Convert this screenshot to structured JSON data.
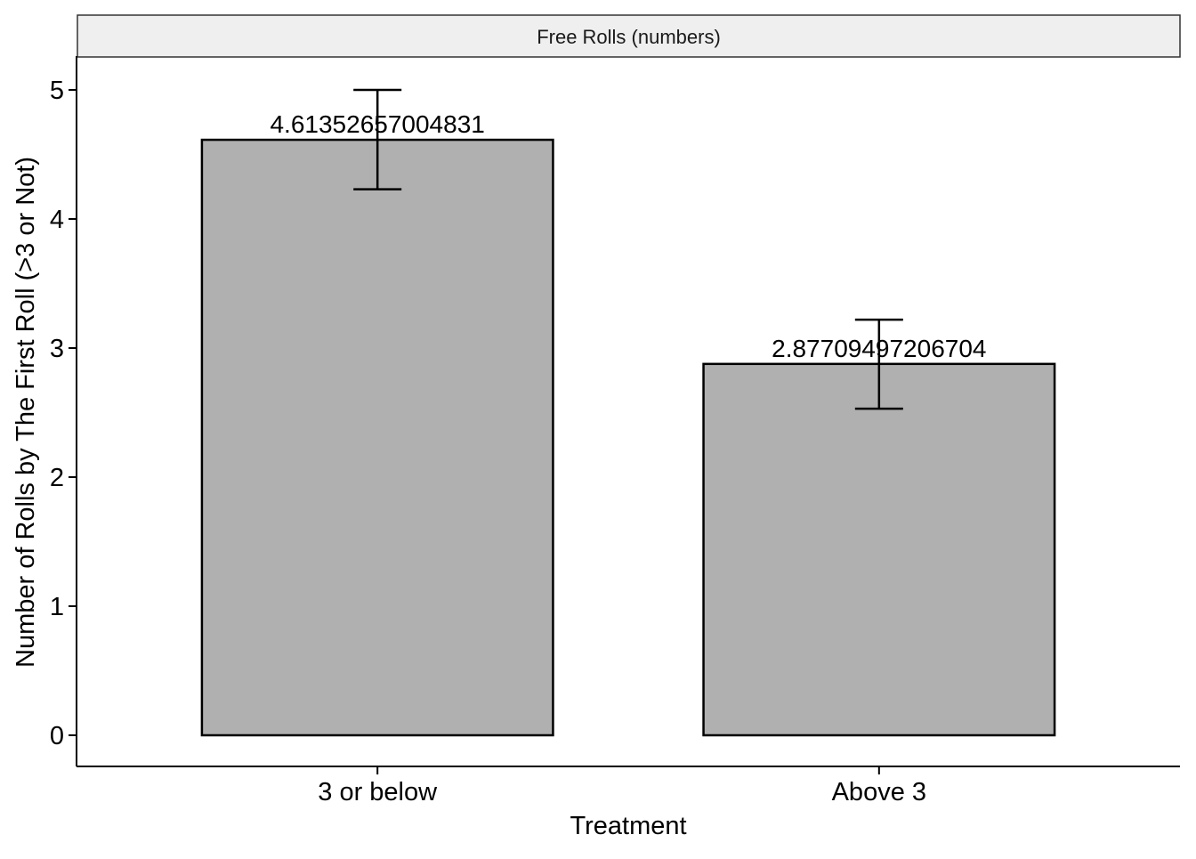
{
  "chart_data": {
    "type": "bar",
    "facet_label": "Free Rolls (numbers)",
    "categories": [
      "3 or below",
      "Above 3"
    ],
    "values": [
      4.61352657004831,
      2.87709497206704
    ],
    "value_labels": [
      "4.61352657004831",
      "2.87709497206704"
    ],
    "error_bars": [
      {
        "lower": 4.23,
        "upper": 5.0
      },
      {
        "lower": 2.53,
        "upper": 3.22
      }
    ],
    "xlabel": "Treatment",
    "ylabel": "Number of Rolls by The First Roll (>3 or Not)",
    "ylim": [
      0,
      5
    ],
    "yticks": [
      0,
      1,
      2,
      3,
      4,
      5
    ],
    "grid": false,
    "colors": {
      "bar_fill": "#b0b0b0",
      "bar_stroke": "#000000",
      "strip_fill": "#efefef",
      "axis": "#000000"
    }
  }
}
